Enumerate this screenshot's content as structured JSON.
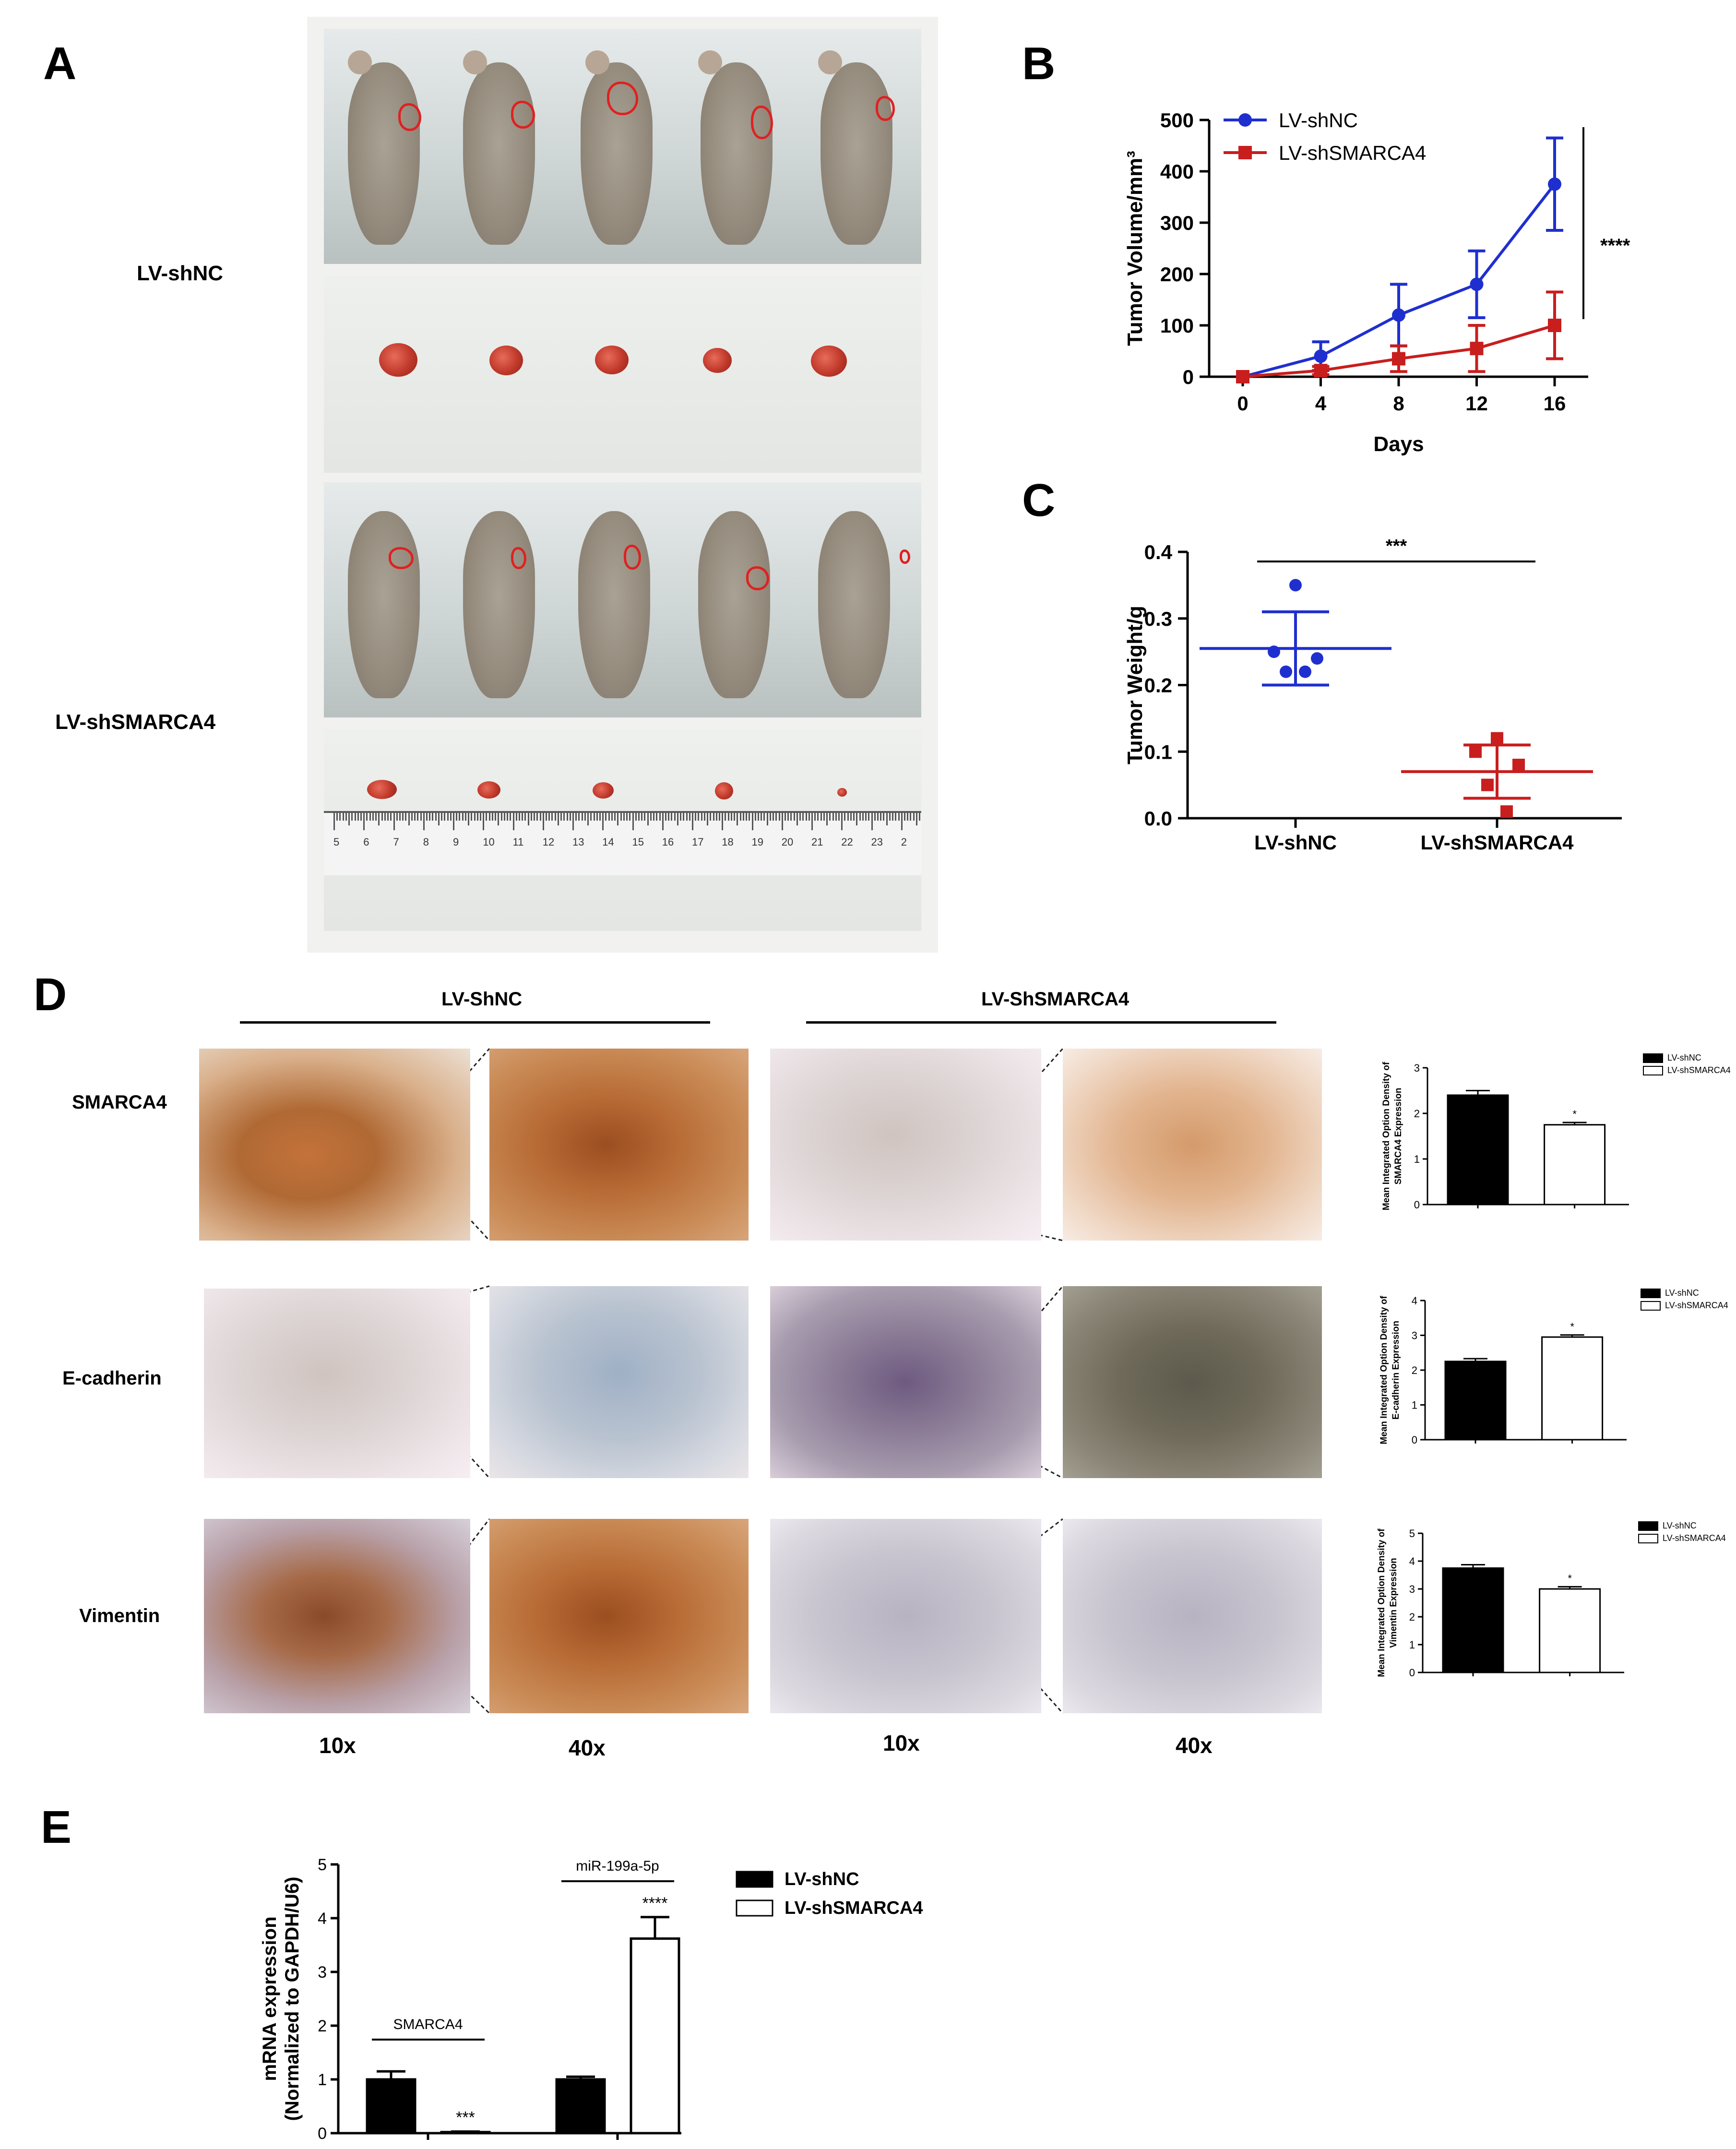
{
  "panels": {
    "A": {
      "label": "A",
      "groups": [
        "LV-shNC",
        "LV-shSMARCA4"
      ],
      "ruler_numbers": [
        "5",
        "6",
        "7",
        "8",
        "9",
        "10",
        "11",
        "12",
        "13",
        "14",
        "15",
        "16",
        "17",
        "18",
        "19",
        "20",
        "21",
        "22",
        "23",
        "2"
      ]
    },
    "B": {
      "label": "B"
    },
    "C": {
      "label": "C"
    },
    "D": {
      "label": "D",
      "group_headers": [
        "LV-ShNC",
        "LV-ShSMARCA4"
      ],
      "rows": [
        "SMARCA4",
        "E-cadherin",
        "Vimentin"
      ],
      "magnifications": [
        "10x",
        "40x",
        "10x",
        "40x"
      ]
    },
    "E": {
      "label": "E"
    }
  },
  "colors": {
    "shNC_blue": "#1f2fcf",
    "shSMARCA4_red": "#c81e1e",
    "bar_black": "#000000",
    "bar_white": "#ffffff"
  },
  "chart_data": [
    {
      "id": "B",
      "type": "line",
      "x": [
        0,
        4,
        8,
        12,
        16
      ],
      "series": [
        {
          "name": "LV-shNC",
          "values": [
            0,
            40,
            120,
            180,
            375
          ],
          "error": [
            0,
            28,
            60,
            65,
            90
          ],
          "color": "#1f2fcf",
          "marker": "circle"
        },
        {
          "name": "LV-shSMARCA4",
          "values": [
            0,
            12,
            35,
            55,
            100
          ],
          "error": [
            0,
            8,
            25,
            45,
            65
          ],
          "color": "#c81e1e",
          "marker": "square"
        }
      ],
      "xlabel": "Days",
      "ylabel": "Tumor Volume/mm³",
      "ylim": [
        0,
        500
      ],
      "yticks": [
        0,
        100,
        200,
        300,
        400,
        500
      ],
      "xticks": [
        0,
        4,
        8,
        12,
        16
      ],
      "annotation": "****",
      "legend": "top-left"
    },
    {
      "id": "C",
      "type": "scatter",
      "categories": [
        "LV-shNC",
        "LV-shSMARCA4"
      ],
      "series": [
        {
          "name": "LV-shNC",
          "points": [
            0.35,
            0.25,
            0.24,
            0.22,
            0.22
          ],
          "mean": 0.255,
          "sd": 0.055,
          "color": "#1f2fcf",
          "marker": "circle"
        },
        {
          "name": "LV-shSMARCA4",
          "points": [
            0.12,
            0.1,
            0.08,
            0.05,
            0.01
          ],
          "mean": 0.07,
          "sd": 0.04,
          "color": "#c81e1e",
          "marker": "square"
        }
      ],
      "ylabel": "Tumor Weight/g",
      "ylim": [
        0,
        0.4
      ],
      "yticks": [
        "0.0",
        "0.1",
        "0.2",
        "0.3",
        "0.4"
      ],
      "annotation": "***"
    },
    {
      "id": "D1",
      "type": "bar",
      "categories": [
        "LV-shNC",
        "LV-shSMARCA4"
      ],
      "values": [
        2.4,
        1.75
      ],
      "error": [
        0.1,
        0.05
      ],
      "ylabel": "Mean Integrated Option Density of SMARCA4  Expression",
      "ylim": [
        0,
        3
      ],
      "yticks": [
        "0",
        "1",
        "2",
        "3"
      ],
      "legend_labels": [
        "LV-shNC",
        "LV-shSMARCA4"
      ],
      "annotation": "*"
    },
    {
      "id": "D2",
      "type": "bar",
      "categories": [
        "LV-shNC",
        "LV-shSMARCA4"
      ],
      "values": [
        2.25,
        2.95
      ],
      "error": [
        0.08,
        0.06
      ],
      "ylabel": "Mean Integrated Option Density of E-cadherin Expression",
      "ylim": [
        0,
        4
      ],
      "yticks": [
        "0",
        "1",
        "2",
        "3",
        "4"
      ],
      "legend_labels": [
        "LV-shNC",
        "LV-shSMARCA4"
      ],
      "annotation": "*"
    },
    {
      "id": "D3",
      "type": "bar",
      "categories": [
        "LV-shNC",
        "LV-shSMARCA4"
      ],
      "values": [
        3.75,
        3.0
      ],
      "error": [
        0.12,
        0.08
      ],
      "ylabel": "Mean Integrated Option Density of Vimentin Expression",
      "ylim": [
        0,
        5
      ],
      "yticks": [
        "0",
        "1",
        "2",
        "3",
        "4",
        "5"
      ],
      "legend_labels": [
        "LV-shNC",
        "LV-shSMARCA4"
      ],
      "annotation": "*"
    },
    {
      "id": "E",
      "type": "bar",
      "groups": [
        "SMARCA4",
        "miR-199a-5p"
      ],
      "series": [
        {
          "name": "LV-shNC",
          "values": [
            1.0,
            1.0
          ],
          "error": [
            0.15,
            0.05
          ],
          "fill": "#000000"
        },
        {
          "name": "LV-shSMARCA4",
          "values": [
            0.02,
            3.62
          ],
          "error": [
            0.01,
            0.4
          ],
          "fill": "#ffffff"
        }
      ],
      "annotations": [
        "***",
        "****"
      ],
      "ylabel_lines": [
        "mRNA expression",
        "(Normalized to GAPDH/U6)"
      ],
      "ylim": [
        0,
        5
      ],
      "yticks": [
        "0",
        "1",
        "2",
        "3",
        "4",
        "5"
      ],
      "legend": "right"
    }
  ]
}
